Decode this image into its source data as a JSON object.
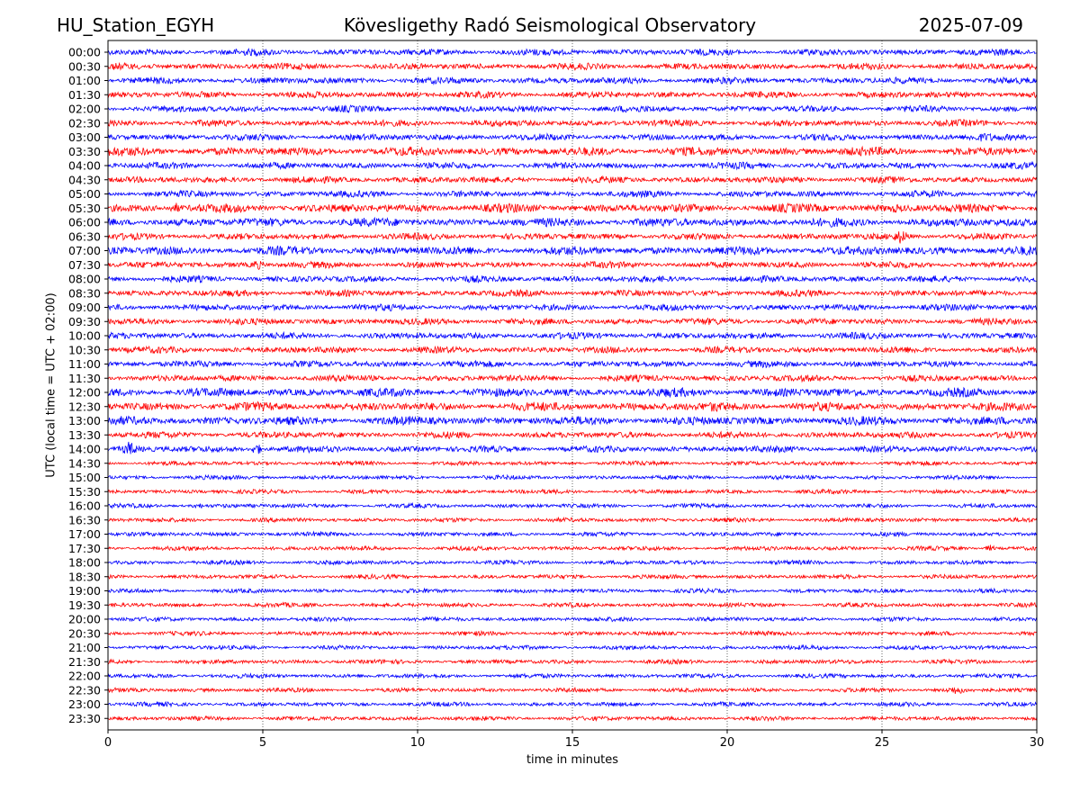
{
  "header": {
    "station": "HU_Station_EGYH",
    "observatory": "Kövesligethy Radó Seismological Observatory",
    "date": "2025-07-09"
  },
  "chart_data": {
    "type": "line",
    "title": "Kövesligethy Radó Seismological Observatory",
    "xlabel": "time in minutes",
    "ylabel": "UTC (local time = UTC + 02:00)",
    "xlim": [
      0,
      30
    ],
    "xticks": [
      0,
      5,
      10,
      15,
      20,
      25,
      30
    ],
    "grid": "vertical dotted at each x tick",
    "row_labels": [
      "00:00",
      "00:30",
      "01:00",
      "01:30",
      "02:00",
      "02:30",
      "03:00",
      "03:30",
      "04:00",
      "04:30",
      "05:00",
      "05:30",
      "06:00",
      "06:30",
      "07:00",
      "07:30",
      "08:00",
      "08:30",
      "09:00",
      "09:30",
      "10:00",
      "10:30",
      "11:00",
      "11:30",
      "12:00",
      "12:30",
      "13:00",
      "13:30",
      "14:00",
      "14:30",
      "15:00",
      "15:30",
      "16:00",
      "16:30",
      "17:00",
      "17:30",
      "18:00",
      "18:30",
      "19:00",
      "19:30",
      "20:00",
      "20:30",
      "21:00",
      "21:30",
      "22:00",
      "22:30",
      "23:00",
      "23:30"
    ],
    "row_colors": [
      "#0000ff",
      "#ff0000"
    ],
    "noise_amplitude": [
      3,
      3,
      3,
      3,
      3,
      3,
      3,
      4,
      3,
      3,
      3,
      4,
      4,
      3,
      4,
      3,
      3,
      3,
      3,
      3,
      3,
      3,
      3,
      3,
      4,
      4,
      4,
      3,
      3,
      2,
      2,
      2,
      2,
      2,
      2,
      2,
      2,
      2,
      2,
      2,
      2,
      2,
      2,
      2,
      2,
      2,
      2,
      2
    ],
    "events": [
      {
        "row": "03:00",
        "minute": 28.3,
        "amplitude": 5,
        "duration": 1.5
      },
      {
        "row": "05:30",
        "minute": 2.2,
        "amplitude": 6,
        "duration": 0.4
      },
      {
        "row": "05:30",
        "minute": 25.4,
        "amplitude": 5,
        "duration": 1.0
      },
      {
        "row": "06:30",
        "minute": 25.6,
        "amplitude": 8,
        "duration": 0.5
      },
      {
        "row": "07:30",
        "minute": 4.8,
        "amplitude": 6,
        "duration": 0.4
      },
      {
        "row": "07:30",
        "minute": 16.3,
        "amplitude": 4,
        "duration": 1.5
      },
      {
        "row": "12:30",
        "minute": 19.6,
        "amplitude": 7,
        "duration": 0.5
      },
      {
        "row": "13:00",
        "minute": 28.8,
        "amplitude": 5,
        "duration": 1.0
      },
      {
        "row": "14:00",
        "minute": 0.7,
        "amplitude": 9,
        "duration": 0.4
      },
      {
        "row": "14:00",
        "minute": 4.8,
        "amplitude": 7,
        "duration": 0.3
      },
      {
        "row": "16:00",
        "minute": 2.9,
        "amplitude": 4,
        "duration": 0.3
      },
      {
        "row": "17:30",
        "minute": 28.5,
        "amplitude": 4,
        "duration": 0.3
      },
      {
        "row": "22:30",
        "minute": 27.4,
        "amplitude": 5,
        "duration": 0.6
      }
    ]
  }
}
